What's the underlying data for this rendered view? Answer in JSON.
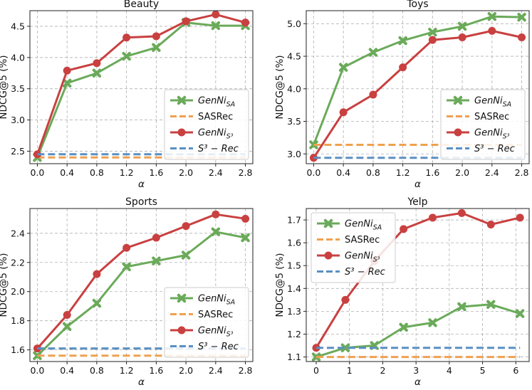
{
  "chart_data": [
    {
      "type": "line",
      "title": "Beauty",
      "xlabel": "α",
      "ylabel": "NDCG@5 (%)",
      "xlim": [
        -0.1,
        2.9
      ],
      "ylim": [
        2.3,
        4.75
      ],
      "xticks": [
        0.0,
        0.4,
        0.8,
        1.2,
        1.6,
        2.0,
        2.4,
        2.8
      ],
      "xtick_labels": [
        "0.0",
        "0.4",
        "0.8",
        "1.2",
        "1.6",
        "2.0",
        "2.4",
        "2.8"
      ],
      "yticks": [
        2.5,
        3.0,
        3.5,
        4.0,
        4.5
      ],
      "ytick_labels": [
        "2.5",
        "3.0",
        "3.5",
        "4.0",
        "4.5"
      ],
      "x": [
        0.0,
        0.4,
        0.8,
        1.2,
        1.6,
        2.0,
        2.4,
        2.8
      ],
      "legend_position": "lower-right",
      "series": [
        {
          "name": "GenNi",
          "sub": "SA",
          "style": "line-x",
          "color": "#6aaa5a",
          "values": [
            2.4,
            3.59,
            3.75,
            4.02,
            4.16,
            4.56,
            4.51,
            4.51
          ]
        },
        {
          "name": "SASRec",
          "sub": "",
          "style": "dashed",
          "color": "#f0a050",
          "values": [
            2.4,
            2.4,
            2.4,
            2.4,
            2.4,
            2.4,
            2.4,
            2.4
          ]
        },
        {
          "name": "GenNi",
          "sub": "S³",
          "style": "line-o",
          "color": "#c94040",
          "values": [
            2.45,
            3.79,
            3.91,
            4.32,
            4.34,
            4.58,
            4.69,
            4.56
          ]
        },
        {
          "name": "S³ − Rec",
          "sub": "",
          "style": "dashed",
          "color": "#5a8fc3",
          "values": [
            2.45,
            2.45,
            2.45,
            2.45,
            2.45,
            2.45,
            2.45,
            2.45
          ]
        }
      ]
    },
    {
      "type": "line",
      "title": "Toys",
      "xlabel": "α",
      "ylabel": "NDCG@5 (%)",
      "xlim": [
        -0.1,
        2.9
      ],
      "ylim": [
        2.85,
        5.2
      ],
      "xticks": [
        0.0,
        0.4,
        0.8,
        1.2,
        1.6,
        2.0,
        2.4,
        2.8
      ],
      "xtick_labels": [
        "0.0",
        "0.4",
        "0.8",
        "1.2",
        "1.6",
        "2.0",
        "2.4",
        "2.8"
      ],
      "yticks": [
        3.0,
        3.5,
        4.0,
        4.5,
        5.0
      ],
      "ytick_labels": [
        "3.0",
        "3.5",
        "4.0",
        "4.5",
        "5.0"
      ],
      "x": [
        0.0,
        0.4,
        0.8,
        1.2,
        1.6,
        2.0,
        2.4,
        2.8
      ],
      "legend_position": "lower-right",
      "series": [
        {
          "name": "GenNi",
          "sub": "SA",
          "style": "line-x",
          "color": "#6aaa5a",
          "values": [
            3.14,
            4.33,
            4.56,
            4.74,
            4.87,
            4.96,
            5.11,
            5.1
          ]
        },
        {
          "name": "SASRec",
          "sub": "",
          "style": "dashed",
          "color": "#f0a050",
          "values": [
            3.14,
            3.14,
            3.14,
            3.14,
            3.14,
            3.14,
            3.14,
            3.14
          ]
        },
        {
          "name": "GenNi",
          "sub": "S³",
          "style": "line-o",
          "color": "#c94040",
          "values": [
            2.94,
            3.64,
            3.91,
            4.33,
            4.75,
            4.79,
            4.89,
            4.79
          ]
        },
        {
          "name": "S³ − Rec",
          "sub": "",
          "style": "dashed",
          "color": "#5a8fc3",
          "values": [
            2.94,
            2.94,
            2.94,
            2.94,
            2.94,
            2.94,
            2.94,
            2.94
          ]
        }
      ]
    },
    {
      "type": "line",
      "title": "Sports",
      "xlabel": "α",
      "ylabel": "NDCG@5 (%)",
      "xlim": [
        -0.1,
        2.9
      ],
      "ylim": [
        1.52,
        2.57
      ],
      "xticks": [
        0.0,
        0.4,
        0.8,
        1.2,
        1.6,
        2.0,
        2.4,
        2.8
      ],
      "xtick_labels": [
        "0.0",
        "0.4",
        "0.8",
        "1.2",
        "1.6",
        "2.0",
        "2.4",
        "2.8"
      ],
      "yticks": [
        1.6,
        1.8,
        2.0,
        2.2,
        2.4
      ],
      "ytick_labels": [
        "1.6",
        "1.8",
        "2.0",
        "2.2",
        "2.4"
      ],
      "x": [
        0.0,
        0.4,
        0.8,
        1.2,
        1.6,
        2.0,
        2.4,
        2.8
      ],
      "legend_position": "lower-right",
      "series": [
        {
          "name": "GenNi",
          "sub": "SA",
          "style": "line-x",
          "color": "#6aaa5a",
          "values": [
            1.56,
            1.76,
            1.92,
            2.17,
            2.21,
            2.25,
            2.41,
            2.37
          ]
        },
        {
          "name": "SASRec",
          "sub": "",
          "style": "dashed",
          "color": "#f0a050",
          "values": [
            1.56,
            1.56,
            1.56,
            1.56,
            1.56,
            1.56,
            1.56,
            1.56
          ]
        },
        {
          "name": "GenNi",
          "sub": "S³",
          "style": "line-o",
          "color": "#c94040",
          "values": [
            1.61,
            1.84,
            2.12,
            2.3,
            2.37,
            2.45,
            2.53,
            2.5
          ]
        },
        {
          "name": "S³ − Rec",
          "sub": "",
          "style": "dashed",
          "color": "#5a8fc3",
          "values": [
            1.61,
            1.61,
            1.61,
            1.61,
            1.61,
            1.61,
            1.61,
            1.61
          ]
        }
      ]
    },
    {
      "type": "line",
      "title": "Yelp",
      "xlabel": "α",
      "ylabel": "NDCG@5 (%)",
      "xlim": [
        -0.3,
        6.4
      ],
      "ylim": [
        1.08,
        1.75
      ],
      "xticks": [
        0,
        1,
        2,
        3,
        4,
        5,
        6
      ],
      "xtick_labels": [
        "0",
        "1",
        "2",
        "3",
        "4",
        "5",
        "6"
      ],
      "yticks": [
        1.1,
        1.2,
        1.3,
        1.4,
        1.5,
        1.6,
        1.7
      ],
      "ytick_labels": [
        "1.1",
        "1.2",
        "1.3",
        "1.4",
        "1.5",
        "1.6",
        "1.7"
      ],
      "x": [
        0.0,
        0.875,
        1.75,
        2.625,
        3.5,
        4.375,
        5.25,
        6.125
      ],
      "legend_position": "upper-left",
      "series": [
        {
          "name": "GenNi",
          "sub": "SA",
          "style": "line-x",
          "color": "#6aaa5a",
          "values": [
            1.1,
            1.14,
            1.15,
            1.23,
            1.25,
            1.32,
            1.33,
            1.29
          ]
        },
        {
          "name": "SASRec",
          "sub": "",
          "style": "dashed",
          "color": "#f0a050",
          "values": [
            1.1,
            1.1,
            1.1,
            1.1,
            1.1,
            1.1,
            1.1,
            1.1
          ]
        },
        {
          "name": "GenNi",
          "sub": "S³",
          "style": "line-o",
          "color": "#c94040",
          "values": [
            1.14,
            1.35,
            1.52,
            1.66,
            1.71,
            1.73,
            1.68,
            1.71
          ]
        },
        {
          "name": "S³ − Rec",
          "sub": "",
          "style": "dashed",
          "color": "#5a8fc3",
          "values": [
            1.14,
            1.14,
            1.14,
            1.14,
            1.14,
            1.14,
            1.14,
            1.14
          ]
        }
      ]
    }
  ]
}
